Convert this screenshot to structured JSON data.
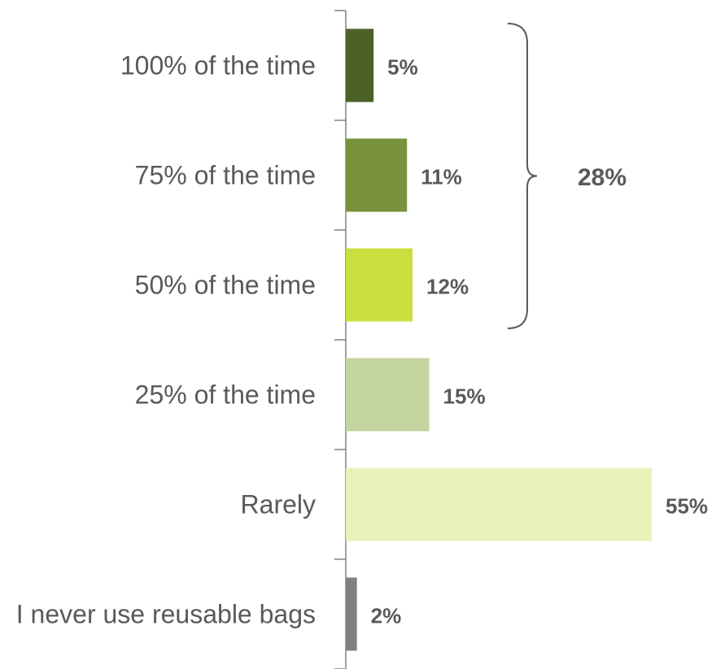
{
  "chart_data": {
    "type": "bar",
    "orientation": "horizontal",
    "categories": [
      "100% of the time",
      "75% of the time",
      "50% of the time",
      "25% of the time",
      "Rarely",
      "I never use reusable bags"
    ],
    "values": [
      5,
      11,
      12,
      15,
      55,
      2
    ],
    "value_labels": [
      "5%",
      "11%",
      "12%",
      "15%",
      "55%",
      "2%"
    ],
    "colors": [
      "#4b6127",
      "#77923a",
      "#cadf3f",
      "#c4d59f",
      "#e8f1b8",
      "#808080"
    ],
    "xlim": [
      0,
      55
    ],
    "grid": false,
    "legend": "none",
    "annotation": {
      "type": "brace",
      "span": [
        "100% of the time",
        "50% of the time"
      ],
      "label": "28%"
    }
  }
}
